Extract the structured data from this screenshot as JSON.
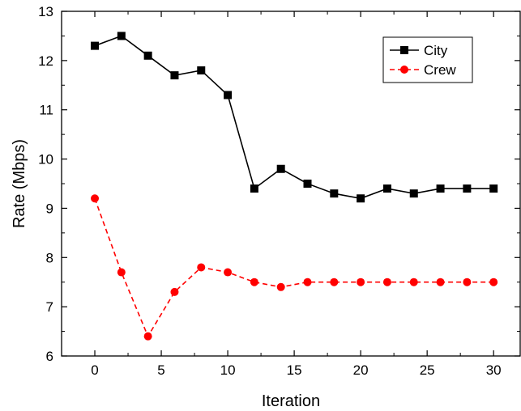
{
  "chart_data": {
    "type": "line",
    "xlabel": "Iteration",
    "ylabel": "Rate (Mbps)",
    "xlim": [
      -2.5,
      32
    ],
    "ylim": [
      6,
      13
    ],
    "xticks": [
      0,
      5,
      10,
      15,
      20,
      25,
      30
    ],
    "yticks": [
      6,
      7,
      8,
      9,
      10,
      11,
      12,
      13
    ],
    "x": [
      0,
      2,
      4,
      6,
      8,
      10,
      12,
      14,
      16,
      18,
      20,
      22,
      24,
      26,
      28,
      30
    ],
    "legend_position": "top-right",
    "grid": false,
    "series": [
      {
        "name": "City",
        "color": "#000000",
        "marker": "square",
        "line_style": "solid",
        "values": [
          12.3,
          12.5,
          12.1,
          11.7,
          11.8,
          11.3,
          9.4,
          9.8,
          9.5,
          9.3,
          9.2,
          9.4,
          9.3,
          9.4,
          9.4,
          9.4
        ]
      },
      {
        "name": "Crew",
        "color": "#ff0000",
        "marker": "circle",
        "line_style": "dashed",
        "values": [
          9.2,
          7.7,
          6.4,
          7.3,
          7.8,
          7.7,
          7.5,
          7.4,
          7.5,
          7.5,
          7.5,
          7.5,
          7.5,
          7.5,
          7.5,
          7.5
        ]
      }
    ]
  }
}
